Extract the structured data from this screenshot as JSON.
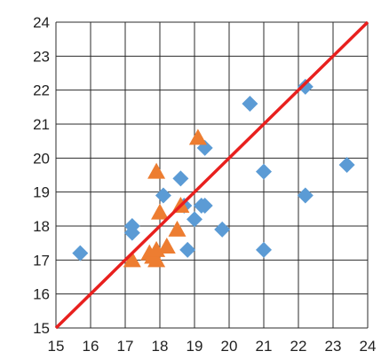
{
  "chart_data": {
    "type": "scatter",
    "title": "",
    "xlabel": "",
    "ylabel": "",
    "xlim": [
      15,
      24
    ],
    "ylim": [
      15,
      24
    ],
    "grid": true,
    "legend": "none",
    "x_ticks": [
      "15",
      "16",
      "17",
      "18",
      "19",
      "20",
      "21",
      "22",
      "23",
      "24"
    ],
    "y_ticks": [
      "15",
      "16",
      "17",
      "18",
      "19",
      "20",
      "21",
      "22",
      "23",
      "24"
    ],
    "reference_line": {
      "from": [
        15,
        15
      ],
      "to": [
        24,
        24
      ],
      "color": "#e8201e"
    },
    "series": [
      {
        "marker": "diamond",
        "color": "#5b9bd5",
        "points": [
          [
            15.7,
            17.2
          ],
          [
            17.2,
            18.0
          ],
          [
            17.2,
            17.8
          ],
          [
            18.1,
            18.9
          ],
          [
            18.6,
            19.4
          ],
          [
            19.3,
            20.3
          ],
          [
            20.6,
            21.6
          ],
          [
            22.2,
            22.1
          ],
          [
            23.4,
            19.8
          ],
          [
            21.0,
            19.6
          ],
          [
            22.2,
            18.9
          ],
          [
            19.0,
            18.2
          ],
          [
            19.2,
            18.6
          ],
          [
            19.3,
            18.6
          ],
          [
            19.8,
            17.9
          ],
          [
            18.8,
            17.3
          ],
          [
            21.0,
            17.3
          ],
          [
            18.7,
            18.6
          ]
        ]
      },
      {
        "marker": "triangle",
        "color": "#ed7d31",
        "points": [
          [
            17.2,
            17.0
          ],
          [
            17.7,
            17.2
          ],
          [
            17.8,
            17.1
          ],
          [
            17.9,
            17.0
          ],
          [
            17.9,
            17.3
          ],
          [
            18.2,
            17.4
          ],
          [
            18.5,
            17.9
          ],
          [
            18.0,
            18.4
          ],
          [
            17.9,
            19.6
          ],
          [
            19.1,
            20.6
          ],
          [
            18.6,
            18.6
          ]
        ]
      }
    ]
  }
}
